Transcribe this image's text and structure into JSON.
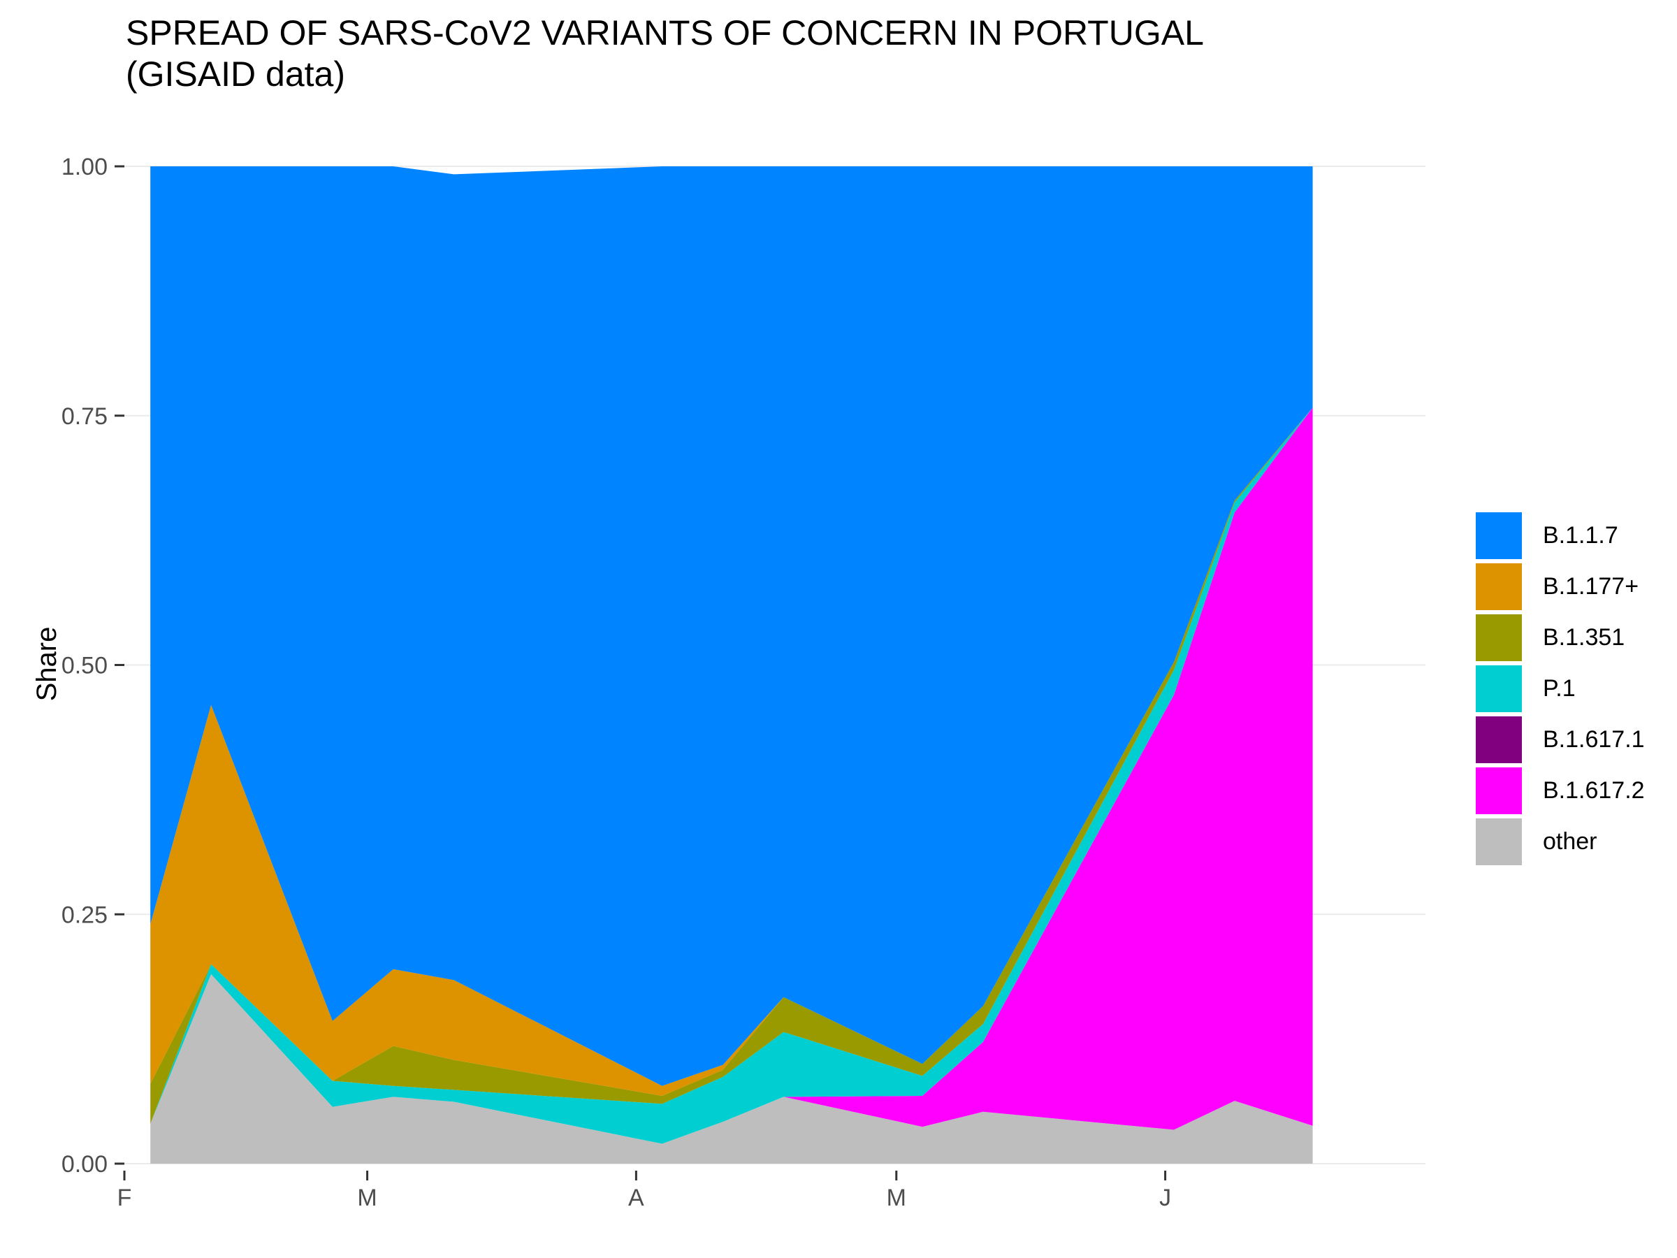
{
  "chart_data": {
    "type": "area",
    "stacked": "fill",
    "title_line1": "SPREAD OF SARS-CoV2 VARIANTS OF CONCERN IN PORTUGAL",
    "title_line2": "(GISAID data)",
    "xlabel": "",
    "ylabel": "Share",
    "ylim": [
      0,
      1
    ],
    "y_ticks": [
      "0.00",
      "0.25",
      "0.50",
      "0.75",
      "1.00"
    ],
    "y_tick_values": [
      0,
      0.25,
      0.5,
      0.75,
      1.0
    ],
    "x_ticks": [
      "F",
      "M",
      "A",
      "M",
      "J"
    ],
    "x_tick_dates": [
      "2021-02-01",
      "2021-03-01",
      "2021-04-01",
      "2021-05-01",
      "2021-06-01"
    ],
    "xlim": [
      "2021-02-01",
      "2021-07-01"
    ],
    "x": [
      "2021-02-04",
      "2021-02-11",
      "2021-02-25",
      "2021-03-04",
      "2021-03-11",
      "2021-04-04",
      "2021-04-11",
      "2021-04-18",
      "2021-05-04",
      "2021-05-11",
      "2021-06-02",
      "2021-06-09",
      "2021-06-18"
    ],
    "series": [
      {
        "name": "other",
        "color": "#BEBEBE",
        "values": [
          0.04,
          0.19,
          0.057,
          0.067,
          0.062,
          0.02,
          0.042,
          0.067,
          0.037,
          0.052,
          0.034,
          0.063,
          0.038
        ]
      },
      {
        "name": "B.1.617.2",
        "color": "#FF00FF",
        "values": [
          0.0,
          0.0,
          0.0,
          0.0,
          0.0,
          0.0,
          0.0,
          0.0,
          0.031,
          0.07,
          0.436,
          0.59,
          0.72
        ]
      },
      {
        "name": "B.1.617.1",
        "color": "#800080",
        "values": [
          0.0,
          0.0,
          0.0,
          0.0,
          0.0,
          0.0,
          0.0,
          0.0,
          0.0,
          0.0,
          0.0,
          0.0,
          0.0
        ]
      },
      {
        "name": "P.1",
        "color": "#00CED1",
        "values": [
          0.0,
          0.01,
          0.026,
          0.011,
          0.012,
          0.04,
          0.045,
          0.065,
          0.02,
          0.018,
          0.025,
          0.01,
          0.0
        ]
      },
      {
        "name": "B.1.351",
        "color": "#999900",
        "values": [
          0.04,
          0.0,
          0.0,
          0.04,
          0.03,
          0.008,
          0.007,
          0.035,
          0.012,
          0.018,
          0.008,
          0.002,
          0.0
        ]
      },
      {
        "name": "B.1.177+",
        "color": "#DD9200",
        "values": [
          0.16,
          0.26,
          0.06,
          0.077,
          0.08,
          0.01,
          0.005,
          0.0,
          0.0,
          0.0,
          0.0,
          0.0,
          0.0
        ]
      },
      {
        "name": "B.1.1.7",
        "color": "#0084FF",
        "values": [
          0.76,
          0.54,
          0.857,
          0.805,
          0.808,
          0.922,
          0.901,
          0.833,
          0.9,
          0.842,
          0.497,
          0.335,
          0.242
        ]
      }
    ],
    "legend": {
      "position": "right",
      "items": [
        {
          "label": "B.1.1.7",
          "color": "#0084FF"
        },
        {
          "label": "B.1.177+",
          "color": "#DD9200"
        },
        {
          "label": "B.1.351",
          "color": "#999900"
        },
        {
          "label": "P.1",
          "color": "#00CED1"
        },
        {
          "label": "B.1.617.1",
          "color": "#800080"
        },
        {
          "label": "B.1.617.2",
          "color": "#FF00FF"
        },
        {
          "label": "other",
          "color": "#BEBEBE"
        }
      ]
    },
    "grid": true,
    "background": "#FFFFFF",
    "grid_color": "#EBEBEB"
  }
}
